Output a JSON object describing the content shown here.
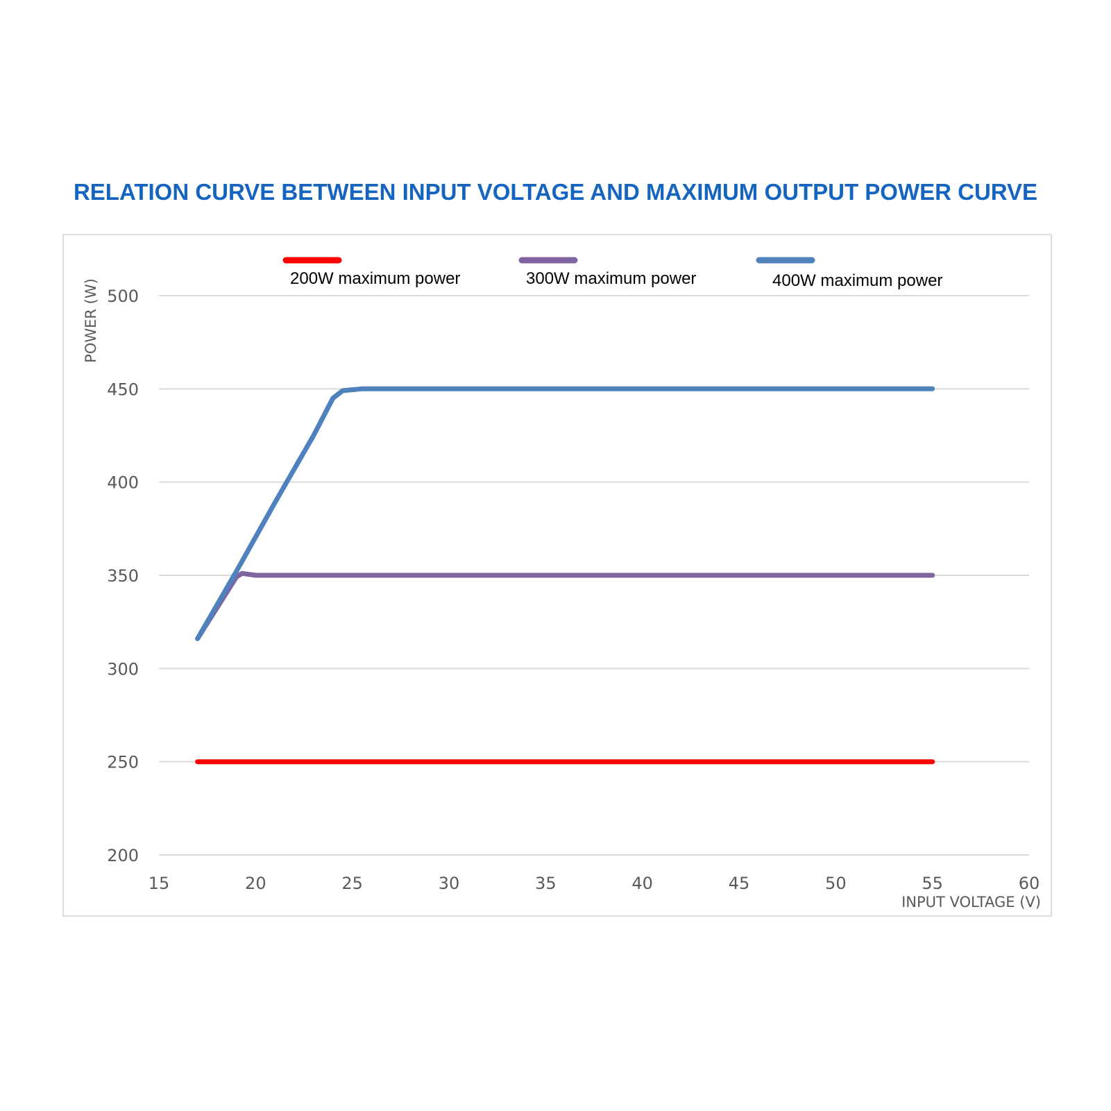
{
  "title": "RELATION CURVE BETWEEN INPUT VOLTAGE AND MAXIMUM OUTPUT POWER CURVE",
  "colors": {
    "title": "#1565c0",
    "grid": "#d9d9d9",
    "tick_text": "#595959"
  },
  "chart_data": {
    "type": "line",
    "title": "RELATION CURVE BETWEEN INPUT VOLTAGE AND MAXIMUM OUTPUT POWER CURVE",
    "xlabel": "INPUT VOLTAGE (V)",
    "ylabel": "POWER (W)",
    "xlim": [
      15,
      60
    ],
    "ylim": [
      200,
      500
    ],
    "xticks": [
      15,
      20,
      25,
      30,
      35,
      40,
      45,
      50,
      55,
      60
    ],
    "yticks": [
      200,
      250,
      300,
      350,
      400,
      450,
      500
    ],
    "grid": "horizontal",
    "legend_position": "top",
    "series": [
      {
        "name": "200W maximum power",
        "color": "#ff0000",
        "x": [
          17,
          55
        ],
        "y": [
          250,
          250
        ]
      },
      {
        "name": "300W maximum power",
        "color": "#8064a2",
        "x": [
          17,
          19,
          19.3,
          20,
          55
        ],
        "y": [
          316,
          349,
          351,
          350,
          350
        ]
      },
      {
        "name": "400W maximum power",
        "color": "#4f81bd",
        "x": [
          17,
          19,
          21,
          23,
          24,
          24.5,
          25.5,
          30,
          55
        ],
        "y": [
          316,
          352,
          389,
          425,
          445,
          449,
          450,
          450,
          450
        ]
      }
    ]
  }
}
